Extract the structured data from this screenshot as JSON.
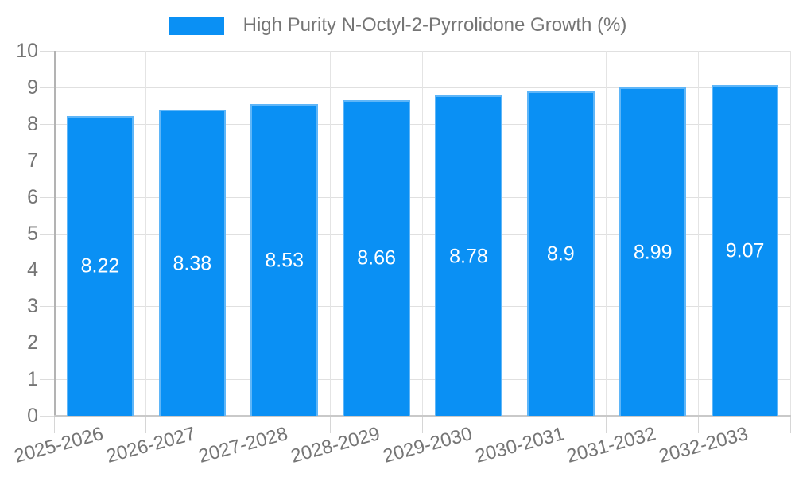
{
  "legend": {
    "label": "High Purity N-Octyl-2-Pyrrolidone Growth (%)"
  },
  "chart_data": {
    "type": "bar",
    "title": "High Purity N-Octyl-2-Pyrrolidone Growth (%)",
    "categories": [
      "2025-2026",
      "2026-2027",
      "2027-2028",
      "2028-2029",
      "2029-2030",
      "2030-2031",
      "2031-2032",
      "2032-2033"
    ],
    "values": [
      8.22,
      8.38,
      8.53,
      8.66,
      8.78,
      8.9,
      8.99,
      9.07
    ],
    "value_labels": [
      "8.22",
      "8.38",
      "8.53",
      "8.66",
      "8.78",
      "8.9",
      "8.99",
      "9.07"
    ],
    "series_name": "High Purity N-Octyl-2-Pyrrolidone Growth (%)",
    "xlabel": "",
    "ylabel": "",
    "ylim": [
      0,
      10
    ],
    "y_ticks": [
      0,
      1,
      2,
      3,
      4,
      5,
      6,
      7,
      8,
      9,
      10
    ],
    "grid": true,
    "legend_position": "top",
    "colors": {
      "bar": "#0a90f4",
      "bar_label": "#ffffff",
      "axis_text": "#757575",
      "background": "#ffffff"
    }
  }
}
